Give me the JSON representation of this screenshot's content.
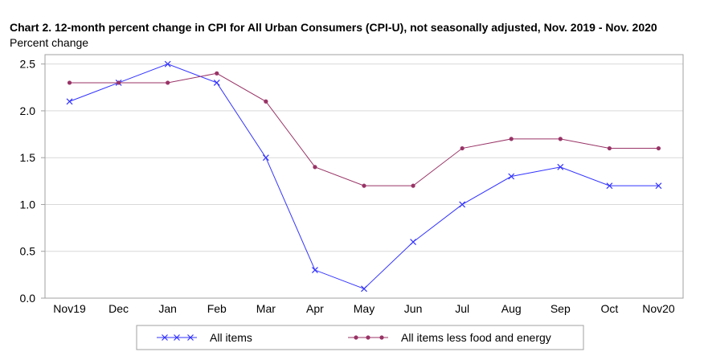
{
  "chart_data": {
    "type": "line",
    "title": "Chart 2. 12-month percent change in CPI for All Urban Consumers (CPI-U), not seasonally adjusted, Nov. 2019 - Nov. 2020",
    "ylabel": "Percent change",
    "xlabel": "",
    "categories": [
      "Nov19",
      "Dec",
      "Jan",
      "Feb",
      "Mar",
      "Apr",
      "May",
      "Jun",
      "Jul",
      "Aug",
      "Sep",
      "Oct",
      "Nov20"
    ],
    "ylim": [
      0,
      2.6
    ],
    "yticks": [
      "0.0",
      "0.5",
      "1.0",
      "1.5",
      "2.0",
      "2.5"
    ],
    "grid": true,
    "legend_position": "bottom",
    "series": [
      {
        "name": "All items",
        "marker": "x",
        "color": "#3333ff",
        "values": [
          2.1,
          2.3,
          2.5,
          2.3,
          1.5,
          0.3,
          0.1,
          0.6,
          1.0,
          1.3,
          1.4,
          1.2,
          1.2
        ]
      },
      {
        "name": "All items less food and energy",
        "marker": "dot",
        "color": "#993366",
        "values": [
          2.3,
          2.3,
          2.3,
          2.4,
          2.1,
          1.4,
          1.2,
          1.2,
          1.6,
          1.7,
          1.7,
          1.6,
          1.6
        ]
      }
    ]
  }
}
